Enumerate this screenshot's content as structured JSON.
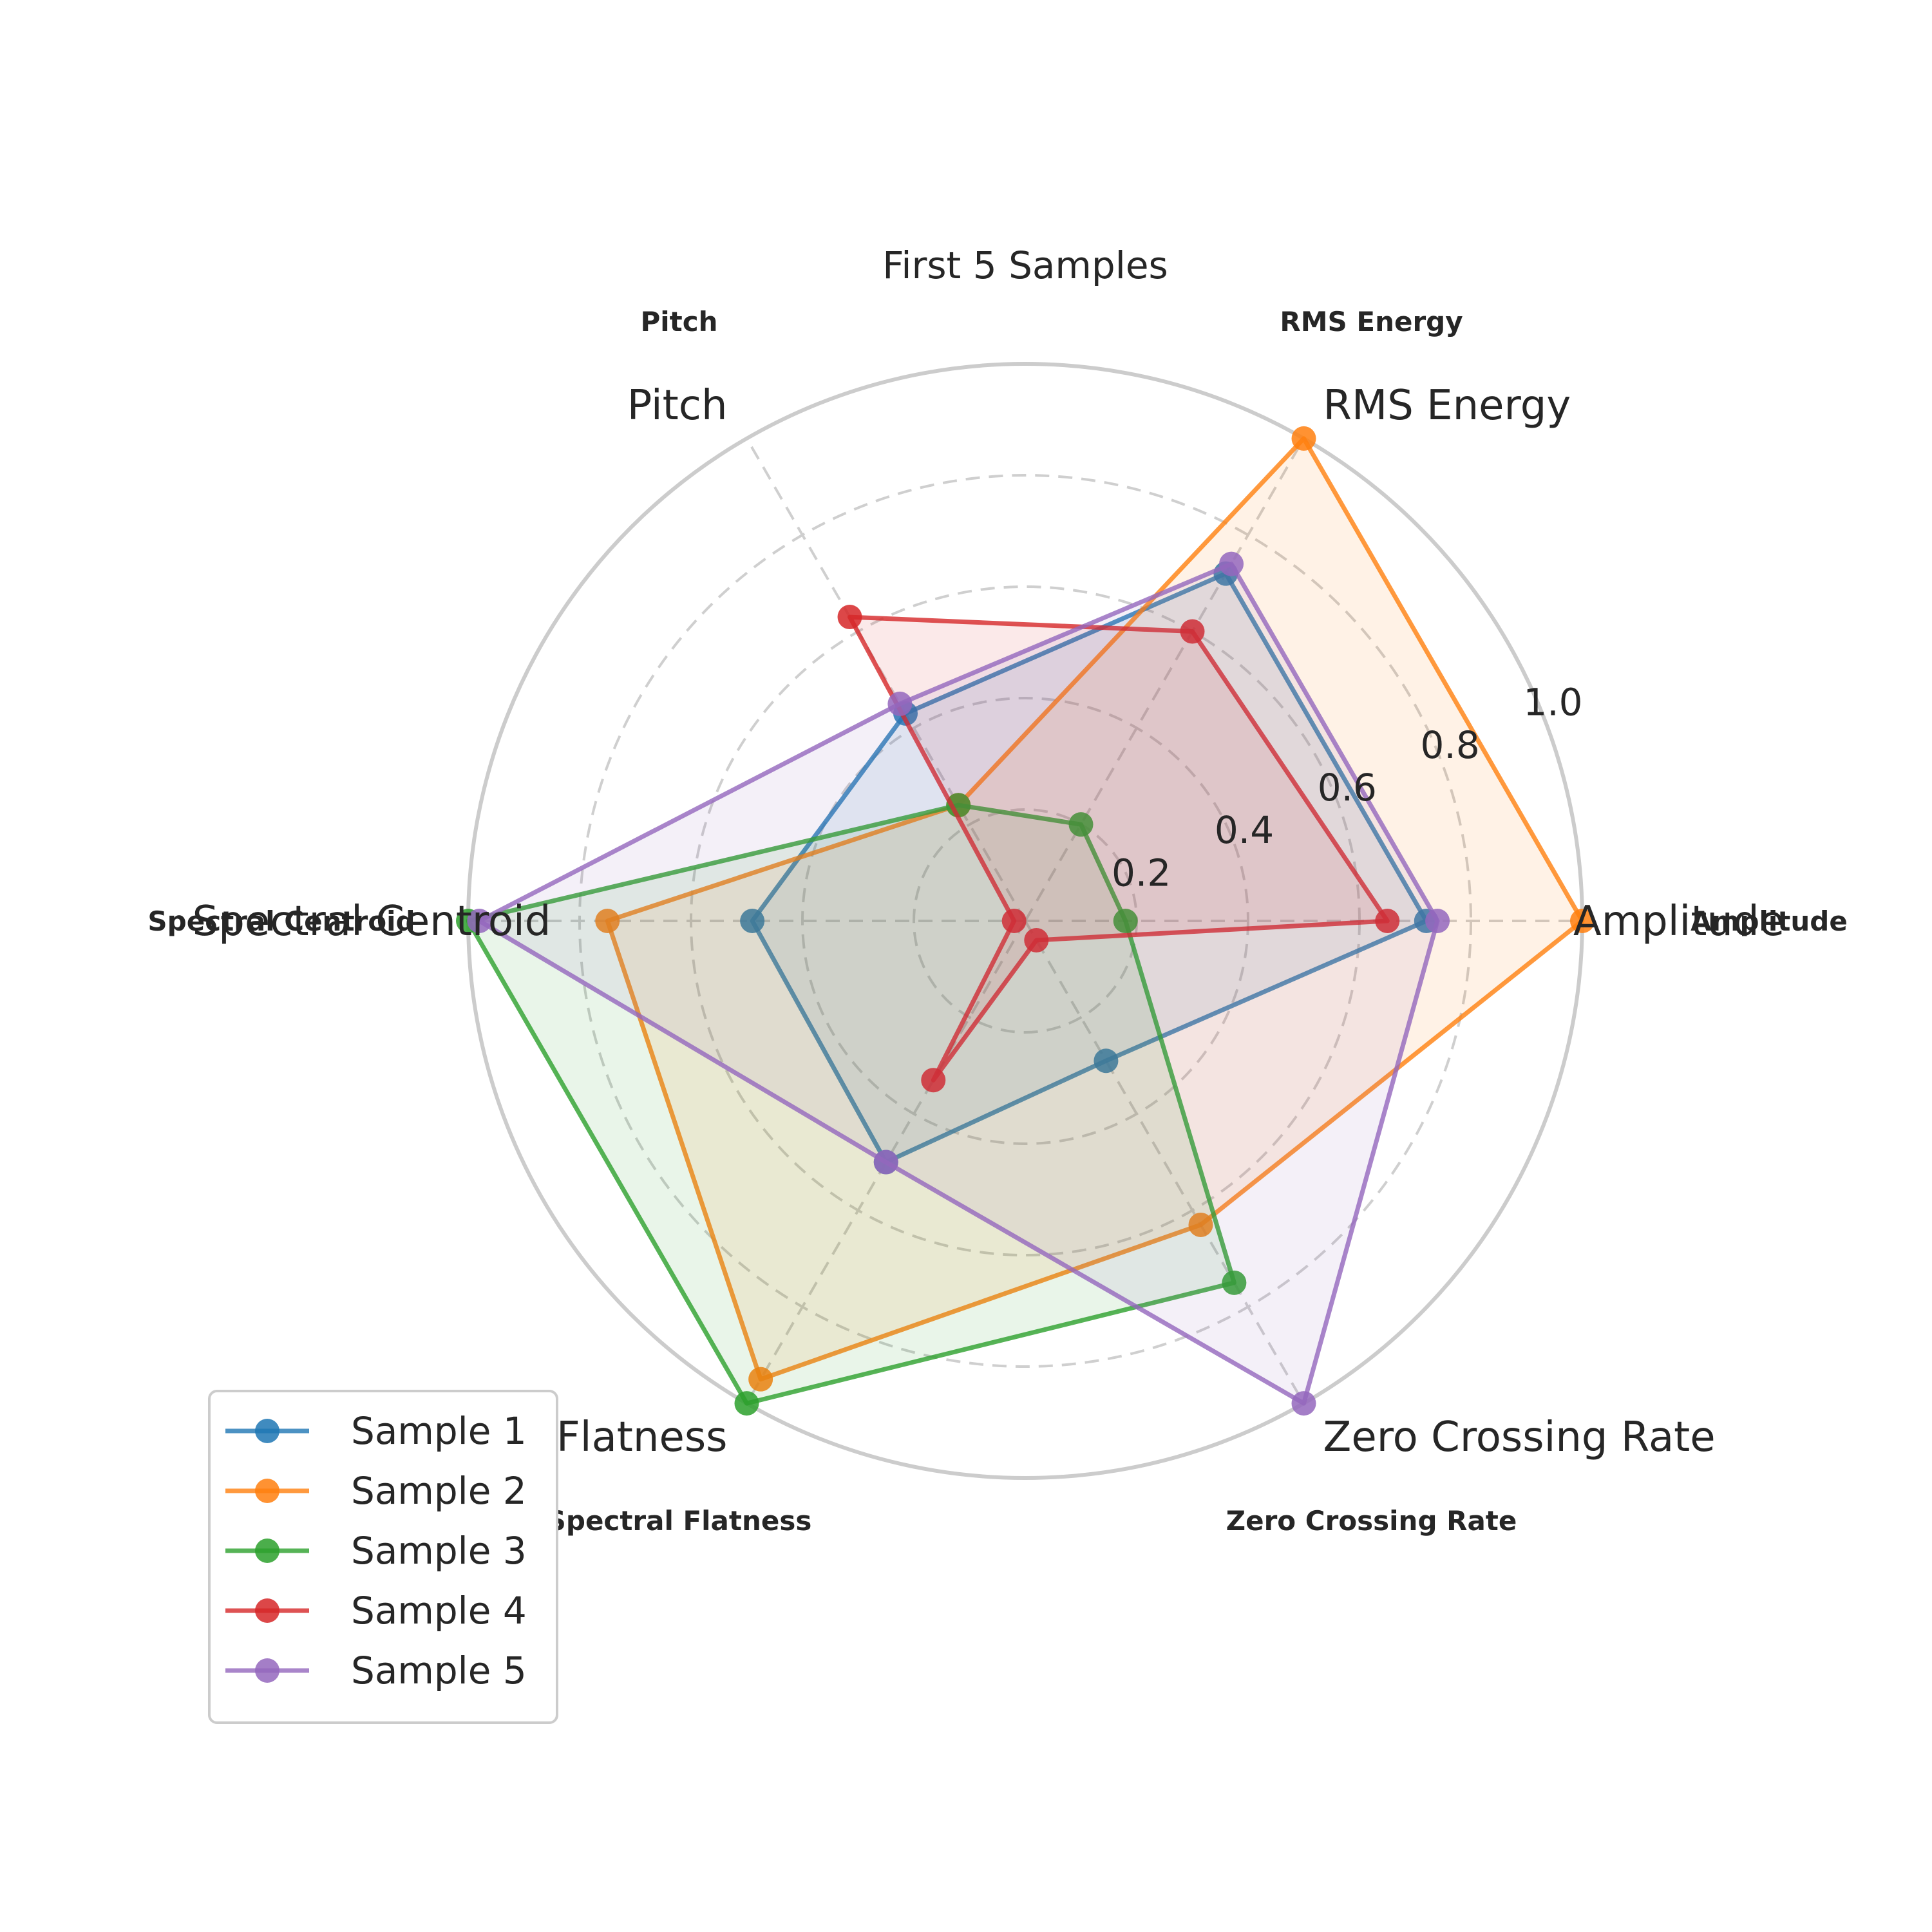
{
  "chart_data": {
    "type": "radar",
    "title": "First 5 Samples",
    "axes": [
      "Amplitude",
      "RMS Energy",
      "Pitch",
      "Spectral Centroid",
      "Spectral Flatness",
      "Zero Crossing Rate"
    ],
    "axis_labels_bold": [
      "Amplitude",
      "RMS Energy",
      "Pitch",
      "Spectral Centroid",
      "Spectral Flatness",
      "Zero Crossing Rate"
    ],
    "rlim": [
      0,
      1.0
    ],
    "rticks": [
      0.2,
      0.4,
      0.6,
      0.8,
      1.0
    ],
    "rtick_labels": [
      "0.2",
      "0.4",
      "0.6",
      "0.8",
      "1.0"
    ],
    "grid": true,
    "legend_position": "lower-left",
    "series": [
      {
        "name": "Sample 1",
        "color": "#1f77b4",
        "values": [
          0.72,
          0.72,
          0.43,
          0.49,
          0.5,
          0.29
        ]
      },
      {
        "name": "Sample 2",
        "color": "#ff7f0e",
        "values": [
          1.0,
          1.0,
          0.24,
          0.75,
          0.95,
          0.63
        ]
      },
      {
        "name": "Sample 3",
        "color": "#2ca02c",
        "values": [
          0.18,
          0.2,
          0.24,
          1.0,
          1.0,
          0.75
        ]
      },
      {
        "name": "Sample 4",
        "color": "#d62728",
        "values": [
          0.65,
          0.6,
          0.63,
          0.02,
          0.33,
          0.04
        ]
      },
      {
        "name": "Sample 5",
        "color": "#9467bd",
        "values": [
          0.74,
          0.74,
          0.45,
          0.98,
          0.5,
          1.0
        ]
      }
    ]
  }
}
